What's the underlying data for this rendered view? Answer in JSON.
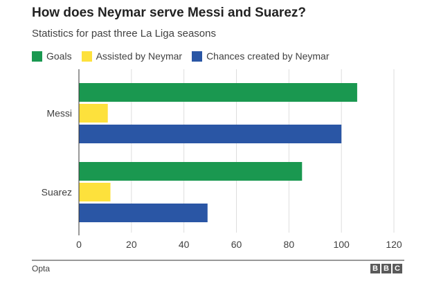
{
  "title": "How does Neymar serve Messi and Suarez?",
  "subtitle": "Statistics for past three La Liga seasons",
  "source": "Opta",
  "logo_letters": [
    "B",
    "B",
    "C"
  ],
  "colors": {
    "goals": "#1a9850",
    "assisted": "#fde13c",
    "chances": "#2a56a5",
    "grid": "#dddddd",
    "axis": "#333333"
  },
  "chart_data": {
    "type": "bar",
    "orientation": "horizontal",
    "title": "How does Neymar serve Messi and Suarez?",
    "subtitle": "Statistics for past three La Liga seasons",
    "categories": [
      "Messi",
      "Suarez"
    ],
    "series": [
      {
        "name": "Goals",
        "values": [
          106,
          85
        ]
      },
      {
        "name": "Assisted by Neymar",
        "values": [
          11,
          12
        ]
      },
      {
        "name": "Chances created by Neymar",
        "values": [
          100,
          49
        ]
      }
    ],
    "xlim": [
      0,
      120
    ],
    "xticks": [
      0,
      20,
      40,
      60,
      80,
      100,
      120
    ],
    "grid": true,
    "legend_position": "top-left"
  }
}
